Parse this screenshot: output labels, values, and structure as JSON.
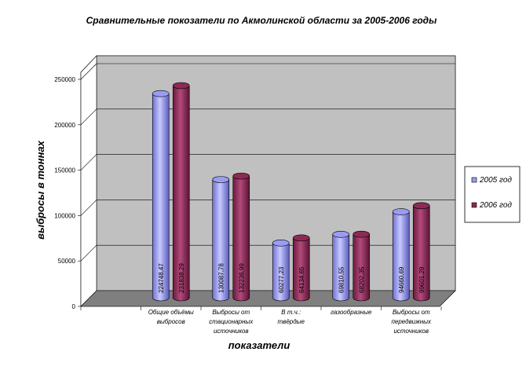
{
  "chart_data": {
    "type": "bar",
    "title": "Сравнительные покозатели по Акмолинской области  за 2005-2006 годы",
    "xlabel": "показатели",
    "ylabel": "выбросы в тоннах",
    "ylim": [
      0,
      250000
    ],
    "yticks": [
      "0",
      "50000",
      "100000",
      "150000",
      "200000",
      "250000"
    ],
    "grid": true,
    "legend_position": "right",
    "categories": [
      [
        "Общие объёмы",
        "выбросов"
      ],
      [
        "Выбросы от",
        "стационарных",
        "источников"
      ],
      [
        "В т.ч.:",
        "твёрдые"
      ],
      [
        "газообразные"
      ],
      [
        "Выбросы от",
        "передвижных",
        "источников"
      ]
    ],
    "series": [
      {
        "name": "2005 год",
        "color": "#9a9cf2",
        "values": [
          224748.47,
          130087.78,
          60277.23,
          69810.55,
          94660.69
        ],
        "labels": [
          "224748,47",
          "130087,78",
          "60277,23",
          "69810,55",
          "94660,69"
        ]
      },
      {
        "name": "2006 год",
        "color": "#8c2a55",
        "values": [
          231838.29,
          132236.99,
          64134.65,
          68202.35,
          99601.29
        ],
        "labels": [
          "231838,29",
          "132236,99",
          "64134,65",
          "68202,35",
          "99601,29"
        ]
      }
    ]
  }
}
